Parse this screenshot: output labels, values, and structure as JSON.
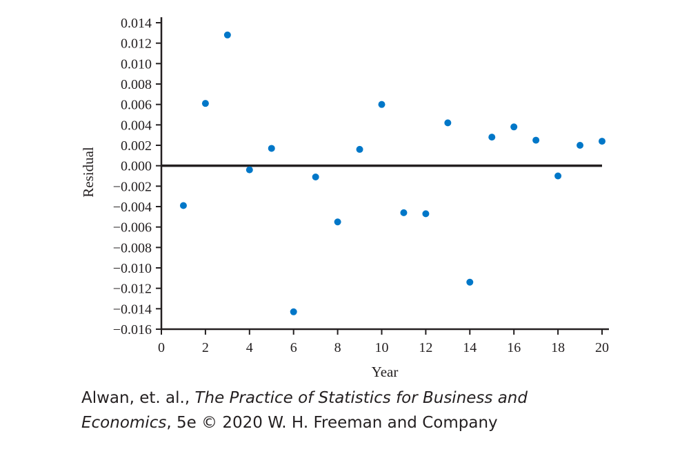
{
  "chart_data": {
    "type": "scatter",
    "xlabel": "Year",
    "ylabel": "Residual",
    "xlim": [
      0,
      20
    ],
    "ylim": [
      -0.016,
      0.014
    ],
    "xticks": [
      0,
      2,
      4,
      6,
      8,
      10,
      12,
      14,
      16,
      18,
      20
    ],
    "xtick_labels": [
      "0",
      "2",
      "4",
      "6",
      "8",
      "10",
      "12",
      "14",
      "16",
      "18",
      "20"
    ],
    "yticks": [
      0.014,
      0.012,
      0.01,
      0.008,
      0.006,
      0.004,
      0.002,
      0.0,
      -0.002,
      -0.004,
      -0.006,
      -0.008,
      -0.01,
      -0.012,
      -0.014,
      -0.016
    ],
    "ytick_labels": [
      "0.014",
      "0.012",
      "0.010",
      "0.008",
      "0.006",
      "0.004",
      "0.002",
      "0.000",
      "−0.002",
      "−0.004",
      "−0.006",
      "−0.008",
      "−0.010",
      "−0.012",
      "−0.014",
      "−0.016"
    ],
    "reference_line_y": 0,
    "grid": false,
    "point_color": "#0077c8",
    "axis_color": "#231f20",
    "points": [
      {
        "x": 1,
        "y": -0.0039
      },
      {
        "x": 2,
        "y": 0.0061
      },
      {
        "x": 3,
        "y": 0.0128
      },
      {
        "x": 4,
        "y": -0.0004
      },
      {
        "x": 5,
        "y": 0.0017
      },
      {
        "x": 6,
        "y": -0.0143
      },
      {
        "x": 7,
        "y": -0.0011
      },
      {
        "x": 8,
        "y": -0.0055
      },
      {
        "x": 9,
        "y": 0.0016
      },
      {
        "x": 10,
        "y": 0.006
      },
      {
        "x": 11,
        "y": -0.0046
      },
      {
        "x": 12,
        "y": -0.0047
      },
      {
        "x": 13,
        "y": 0.0042
      },
      {
        "x": 14,
        "y": -0.0114
      },
      {
        "x": 15,
        "y": 0.0028
      },
      {
        "x": 16,
        "y": 0.0038
      },
      {
        "x": 17,
        "y": 0.0025
      },
      {
        "x": 18,
        "y": -0.001
      },
      {
        "x": 19,
        "y": 0.002
      },
      {
        "x": 20,
        "y": 0.0024
      }
    ]
  },
  "caption": {
    "line1_prefix": "Alwan, et. al., ",
    "line1_title": "The Practice of Statistics for Business and",
    "line2_title": "Economics",
    "line2_suffix": ", 5e © 2020 W. H. Freeman and Company"
  }
}
